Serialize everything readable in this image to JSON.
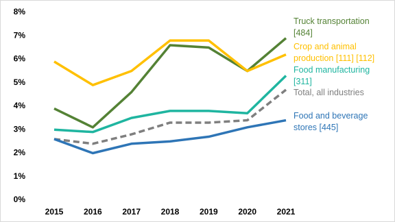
{
  "chart_data": {
    "type": "line",
    "x": [
      2015,
      2016,
      2017,
      2018,
      2019,
      2020,
      2021
    ],
    "ylim": [
      0,
      8
    ],
    "yticks": [
      {
        "value": 0,
        "label": "0%"
      },
      {
        "value": 1,
        "label": "1%"
      },
      {
        "value": 2,
        "label": "2%"
      },
      {
        "value": 3,
        "label": "3%"
      },
      {
        "value": 4,
        "label": "4%"
      },
      {
        "value": 5,
        "label": "5%"
      },
      {
        "value": 6,
        "label": "6%"
      },
      {
        "value": 7,
        "label": "7%"
      },
      {
        "value": 8,
        "label": "8%"
      }
    ],
    "series": [
      {
        "name": "Truck transportation [484]",
        "color": "#548235",
        "values": [
          3.9,
          3.1,
          4.6,
          6.6,
          6.5,
          5.5,
          6.9
        ]
      },
      {
        "name": "Crop and animal production [111] [112]",
        "color": "#ffc000",
        "values": [
          5.9,
          4.9,
          5.5,
          6.8,
          6.8,
          5.5,
          6.2
        ]
      },
      {
        "name": "Food manufacturing [311]",
        "color": "#1fb5a0",
        "values": [
          3.0,
          2.9,
          3.5,
          3.8,
          3.8,
          3.7,
          5.3
        ]
      },
      {
        "name": "Total, all industries",
        "color": "#7f7f7f",
        "dashed": true,
        "values": [
          2.6,
          2.4,
          2.8,
          3.3,
          3.3,
          3.4,
          4.7
        ]
      },
      {
        "name": "Food and beverage stores [445]",
        "color": "#2e75b6",
        "values": [
          2.6,
          2.0,
          2.4,
          2.5,
          2.7,
          3.1,
          3.4
        ]
      }
    ]
  }
}
